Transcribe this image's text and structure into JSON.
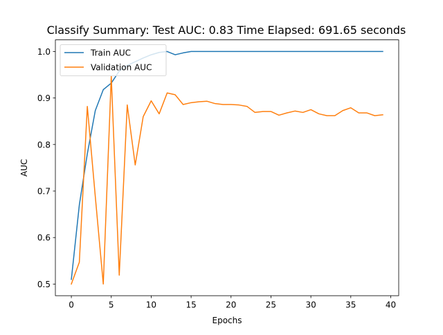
{
  "chart_data": {
    "type": "line",
    "title": "Classify Summary: Test AUC: 0.83 Time Elapsed: 691.65 seconds",
    "xlabel": "Epochs",
    "ylabel": "AUC",
    "xlim": [
      -2,
      41
    ],
    "ylim": [
      0.475,
      1.025
    ],
    "xticks": [
      0,
      5,
      10,
      15,
      20,
      25,
      30,
      35,
      40
    ],
    "yticks": [
      0.5,
      0.6,
      0.7,
      0.8,
      0.9,
      1.0
    ],
    "ytick_labels": [
      "0.5",
      "0.6",
      "0.7",
      "0.8",
      "0.9",
      "1.0"
    ],
    "grid": false,
    "legend_position": "upper-left",
    "x": [
      0,
      1,
      2,
      3,
      4,
      5,
      6,
      7,
      8,
      9,
      10,
      11,
      12,
      13,
      14,
      15,
      16,
      17,
      18,
      19,
      20,
      21,
      22,
      23,
      24,
      25,
      26,
      27,
      28,
      29,
      30,
      31,
      32,
      33,
      34,
      35,
      36,
      37,
      38,
      39
    ],
    "series": [
      {
        "name": "Train AUC",
        "color": "#1f77b4",
        "values": [
          0.51,
          0.67,
          0.78,
          0.873,
          0.918,
          0.932,
          0.958,
          0.97,
          0.978,
          0.986,
          0.993,
          0.998,
          1.0,
          0.993,
          0.997,
          1.0,
          1.0,
          1.0,
          1.0,
          1.0,
          1.0,
          1.0,
          1.0,
          1.0,
          1.0,
          1.0,
          1.0,
          1.0,
          1.0,
          1.0,
          1.0,
          1.0,
          1.0,
          1.0,
          1.0,
          1.0,
          1.0,
          1.0,
          1.0,
          1.0
        ]
      },
      {
        "name": "Validation AUC",
        "color": "#ff7f0e",
        "values": [
          0.5,
          0.547,
          0.882,
          0.688,
          0.5,
          0.947,
          0.519,
          0.885,
          0.756,
          0.86,
          0.894,
          0.866,
          0.911,
          0.907,
          0.886,
          0.89,
          0.892,
          0.893,
          0.888,
          0.886,
          0.886,
          0.885,
          0.882,
          0.869,
          0.871,
          0.871,
          0.863,
          0.868,
          0.872,
          0.869,
          0.875,
          0.866,
          0.862,
          0.862,
          0.873,
          0.879,
          0.868,
          0.868,
          0.862,
          0.864
        ]
      }
    ]
  }
}
